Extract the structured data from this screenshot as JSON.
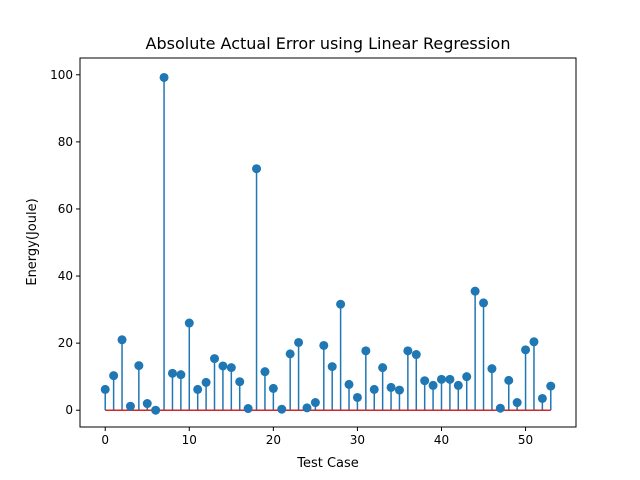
{
  "chart_data": {
    "type": "stem",
    "title": "Absolute Actual Error using Linear Regression",
    "xlabel": "Test Case",
    "ylabel": "Energy(Joule)",
    "xlim": [
      -3,
      56
    ],
    "ylim": [
      -5,
      105
    ],
    "x_ticks": [
      0,
      10,
      20,
      30,
      40,
      50
    ],
    "y_ticks": [
      0,
      20,
      40,
      60,
      80,
      100
    ],
    "grid": false,
    "colors": {
      "stem": "#1f77b4",
      "baseline": "#d62728",
      "axes": "#000000"
    },
    "x": [
      0,
      1,
      2,
      3,
      4,
      5,
      6,
      7,
      8,
      9,
      10,
      11,
      12,
      13,
      14,
      15,
      16,
      17,
      18,
      19,
      20,
      21,
      22,
      23,
      24,
      25,
      26,
      27,
      28,
      29,
      30,
      31,
      32,
      33,
      34,
      35,
      36,
      37,
      38,
      39,
      40,
      41,
      42,
      43,
      44,
      45,
      46,
      47,
      48,
      49,
      50,
      51,
      52,
      53
    ],
    "values": [
      6.2,
      10.3,
      21.0,
      1.2,
      13.3,
      2.0,
      0.0,
      99.2,
      11.0,
      10.6,
      26.0,
      6.2,
      8.3,
      15.4,
      13.2,
      12.7,
      8.5,
      0.5,
      72.0,
      11.5,
      6.5,
      0.3,
      16.8,
      20.2,
      0.7,
      2.3,
      19.3,
      13.0,
      31.6,
      7.7,
      3.8,
      17.7,
      6.2,
      12.7,
      6.8,
      6.0,
      17.7,
      16.6,
      8.8,
      7.4,
      9.2,
      9.2,
      7.4,
      10.0,
      35.5,
      32.0,
      12.4,
      0.6,
      8.9,
      2.3,
      18.0,
      20.4,
      3.5,
      7.2
    ]
  }
}
